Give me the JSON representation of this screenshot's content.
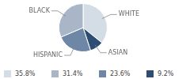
{
  "chart_data": {
    "type": "pie",
    "categories": [
      "WHITE",
      "ASIAN",
      "HISPANIC",
      "BLACK"
    ],
    "values": [
      35.8,
      9.2,
      23.6,
      31.4
    ],
    "value_labels": [
      "35.8%",
      "9.2%",
      "23.6%",
      "31.4%"
    ],
    "colors": [
      "#d4dce6",
      "#2d4d72",
      "#6e87a6",
      "#a8b6c8"
    ],
    "legend": "bottom"
  }
}
